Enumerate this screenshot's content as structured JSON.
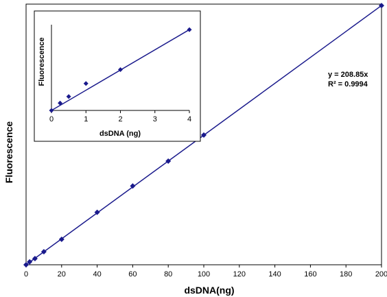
{
  "chart_data": [
    {
      "id": "main",
      "type": "scatter",
      "title": "",
      "xlabel": "dsDNA(ng)",
      "ylabel": "Fluorescence",
      "xlim": [
        0,
        200
      ],
      "xticks": [
        0,
        20,
        40,
        60,
        80,
        100,
        120,
        140,
        160,
        180,
        200
      ],
      "ylim": [
        0,
        42000
      ],
      "yticks_shown": false,
      "grid": false,
      "legend": "none",
      "marker_color": "#1a1a8c",
      "line_color": "#1a1a8c",
      "series": [
        {
          "x": [
            0,
            2,
            5,
            10,
            20,
            40,
            60,
            80,
            100,
            200
          ],
          "y": [
            0,
            470,
            1000,
            2100,
            4100,
            8450,
            12700,
            16700,
            20900,
            41770
          ]
        }
      ],
      "trendline": {
        "type": "linear",
        "slope": 208.85,
        "intercept": 0
      },
      "annotations": [
        "y = 208.85x",
        "R² = 0.9994"
      ]
    },
    {
      "id": "inset",
      "type": "scatter",
      "title": "",
      "xlabel": "dsDNA (ng)",
      "ylabel": "Fluorescence",
      "xlim": [
        0,
        4
      ],
      "xticks": [
        0,
        1,
        2,
        3,
        4
      ],
      "ylim": [
        0,
        1000
      ],
      "yticks_shown": false,
      "grid": false,
      "legend": "none",
      "marker_color": "#1a1a8c",
      "line_color": "#1a1a8c",
      "series": [
        {
          "x": [
            0,
            0.25,
            0.5,
            1,
            2,
            4
          ],
          "y": [
            0,
            90,
            170,
            330,
            500,
            990
          ]
        }
      ],
      "trendline": {
        "type": "linear",
        "slope": 247.5,
        "intercept": 0
      },
      "annotations": []
    }
  ]
}
